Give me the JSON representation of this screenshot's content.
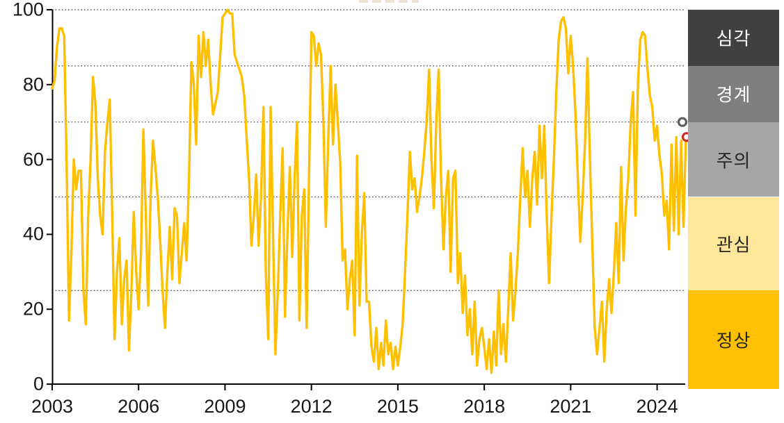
{
  "chart_data": {
    "type": "line",
    "title": "",
    "line_color": "#FFC000",
    "line_width": 3.4,
    "axis_color": "#000000",
    "tick_label_color": "#171717",
    "gridline_color": "#3a3a3a",
    "ylim": [
      0,
      100
    ],
    "y_ticks": [
      0,
      20,
      40,
      60,
      80,
      100
    ],
    "x_tick_years": [
      2003,
      2006,
      2009,
      2012,
      2015,
      2018,
      2021,
      2024
    ],
    "gridlines_y": [
      25,
      50,
      70,
      85,
      100
    ],
    "gridline_style": "dotted",
    "x_start_year": 2003,
    "x_months_per_point": 1,
    "values": [
      79,
      81,
      90,
      95,
      95,
      93,
      60,
      17,
      35,
      60,
      52,
      57,
      57,
      25,
      16,
      45,
      60,
      82,
      75,
      55,
      45,
      40,
      62,
      70,
      76,
      45,
      12,
      30,
      39,
      16,
      28,
      33,
      9,
      25,
      46,
      30,
      20,
      35,
      68,
      45,
      21,
      50,
      65,
      58,
      50,
      38,
      25,
      15,
      30,
      42,
      28,
      47,
      45,
      27,
      35,
      43,
      33,
      55,
      86,
      80,
      64,
      93,
      82,
      94,
      85,
      92,
      80,
      72,
      75,
      78,
      88,
      98,
      99,
      100,
      99,
      99,
      88,
      86,
      84,
      82,
      77,
      66,
      55,
      37,
      45,
      56,
      37,
      50,
      74,
      30,
      12,
      74,
      40,
      8,
      25,
      45,
      63,
      18,
      40,
      58,
      34,
      55,
      70,
      17,
      45,
      52,
      15,
      55,
      94,
      93,
      85,
      91,
      88,
      70,
      42,
      65,
      85,
      64,
      80,
      70,
      59,
      33,
      36,
      20,
      28,
      33,
      13,
      61,
      21,
      40,
      51,
      22,
      22,
      10,
      6,
      15,
      4,
      11,
      5,
      17,
      8,
      11,
      4,
      10,
      5,
      10,
      16,
      30,
      45,
      62,
      52,
      55,
      46,
      50,
      55,
      62,
      70,
      84,
      60,
      47,
      70,
      84,
      55,
      36,
      50,
      57,
      30,
      55,
      57,
      27,
      35,
      19,
      29,
      13,
      20,
      8,
      22,
      5,
      12,
      15,
      10,
      4,
      12,
      3,
      14,
      5,
      25,
      8,
      16,
      6,
      20,
      35,
      17,
      25,
      35,
      50,
      63,
      50,
      57,
      42,
      55,
      62,
      48,
      69,
      55,
      69,
      45,
      27,
      45,
      60,
      78,
      92,
      97,
      98,
      95,
      83,
      93,
      85,
      72,
      55,
      38,
      50,
      65,
      87,
      60,
      38,
      15,
      8,
      15,
      22,
      6,
      20,
      28,
      19,
      30,
      43,
      27,
      58,
      33,
      47,
      55,
      70,
      78,
      45,
      80,
      92,
      94,
      93,
      84,
      77,
      74,
      65,
      69,
      61,
      56,
      45,
      49,
      36,
      64,
      41,
      66,
      40,
      65,
      42,
      66
    ],
    "markers": [
      {
        "name": "reference-point",
        "value": 70,
        "ring_color": "#5f5f5f",
        "fill": "#ffffff"
      },
      {
        "name": "latest-point",
        "value": 66,
        "ring_color": "#cb3028",
        "fill": "#ffffff"
      }
    ],
    "zones": [
      {
        "label": "심각",
        "from": 85,
        "to": 100,
        "color": "#404040",
        "label_color": "#ffffff"
      },
      {
        "label": "경계",
        "from": 70,
        "to": 85,
        "color": "#7f7f7f",
        "label_color": "#ffffff"
      },
      {
        "label": "주의",
        "from": 50,
        "to": 70,
        "color": "#a6a6a6",
        "label_color": "#262626"
      },
      {
        "label": "관심",
        "from": 25,
        "to": 50,
        "color": "#ffe699",
        "label_color": "#262626"
      },
      {
        "label": "정상",
        "from": 0,
        "to": 25,
        "color": "#ffc000",
        "label_color": "#262626"
      }
    ],
    "legend_position": "right-bands"
  }
}
